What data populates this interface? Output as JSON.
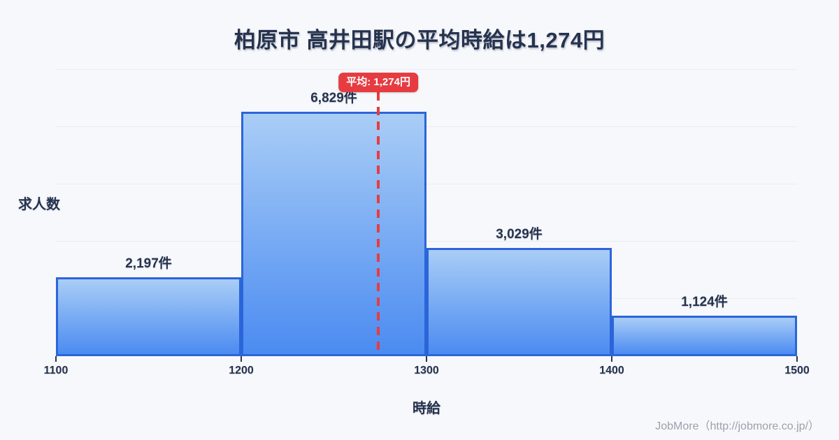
{
  "page": {
    "background": "#F7F8FB"
  },
  "footer": {
    "credit": "JobMore（http://jobmore.co.jp/）"
  },
  "chart_data": {
    "type": "bar",
    "title": "柏原市 高井田駅の平均時給は1,274円",
    "xlabel": "時給",
    "ylabel": "求人数",
    "categories": [
      "1100-1200",
      "1200-1300",
      "1300-1400",
      "1400-1500"
    ],
    "values": [
      2197,
      6829,
      3029,
      1124
    ],
    "bar_labels": [
      "2,197件",
      "6,829件",
      "3,029件",
      "1,124件"
    ],
    "x_ticks": [
      1100,
      1200,
      1300,
      1400,
      1500
    ],
    "x_tick_labels": [
      "1100",
      "1200",
      "1300",
      "1400",
      "1500"
    ],
    "xlim": [
      1100,
      1500
    ],
    "ylim": [
      0,
      8040
    ],
    "gridline_values": [
      1600,
      3200,
      4800,
      6400,
      8000
    ],
    "grid": true,
    "legend": false,
    "y_tick_labels": false,
    "average": {
      "value": 1274,
      "label": "平均: 1,274円"
    },
    "colors": {
      "background": "#F7F8FB",
      "text": "#26334F",
      "bar_fill_top": "#A9CDF6",
      "bar_fill_bottom": "#4B8BF1",
      "bar_border": "#2B65D9",
      "grid": "#E9ECF2",
      "average_red": "#E63C41",
      "badge_text": "#FFFFFF",
      "footer_text": "#9BA1AC"
    }
  }
}
